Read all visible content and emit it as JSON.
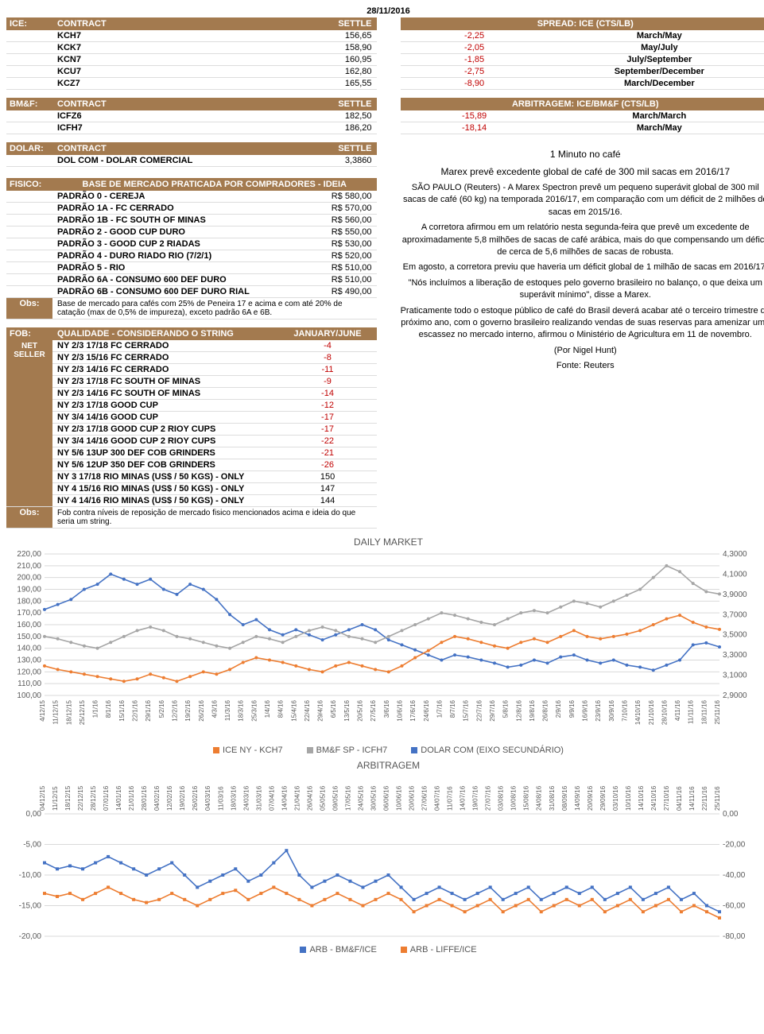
{
  "date": "28/11/2016",
  "ice": {
    "label": "ICE:",
    "headers": [
      "CONTRACT",
      "SETTLE"
    ],
    "rows": [
      [
        "KCH7",
        "156,65"
      ],
      [
        "KCK7",
        "158,90"
      ],
      [
        "KCN7",
        "160,95"
      ],
      [
        "KCU7",
        "162,80"
      ],
      [
        "KCZ7",
        "165,55"
      ]
    ]
  },
  "spread": {
    "title": "SPREAD: ICE (CTS/LB)",
    "rows": [
      [
        "-2,25",
        "March/May"
      ],
      [
        "-2,05",
        "May/July"
      ],
      [
        "-1,85",
        "July/September"
      ],
      [
        "-2,75",
        "September/December"
      ],
      [
        "-8,90",
        "March/December"
      ]
    ]
  },
  "bmf": {
    "label": "BM&F:",
    "headers": [
      "CONTRACT",
      "SETTLE"
    ],
    "rows": [
      [
        "ICFZ6",
        "182,50"
      ],
      [
        "ICFH7",
        "186,20"
      ]
    ]
  },
  "arb": {
    "title": "ARBITRAGEM: ICE/BM&F (CTS/LB)",
    "rows": [
      [
        "-15,89",
        "March/March"
      ],
      [
        "-18,14",
        "March/May"
      ]
    ]
  },
  "dolar": {
    "label": "DOLAR:",
    "headers": [
      "CONTRACT",
      "SETTLE"
    ],
    "rows": [
      [
        "DOL COM - DOLAR COMERCIAL",
        "3,3860"
      ]
    ]
  },
  "fisico": {
    "label": "FISICO:",
    "title": "BASE DE MERCADO PRATICADA POR COMPRADORES - IDEIA",
    "rows": [
      [
        "PADRÃO 0 - CEREJA",
        "R$ 580,00"
      ],
      [
        "PADRÃO 1A - FC CERRADO",
        "R$ 570,00"
      ],
      [
        "PADRÃO 1B - FC SOUTH OF MINAS",
        "R$ 560,00"
      ],
      [
        "PADRÃO 2 - GOOD CUP DURO",
        "R$ 550,00"
      ],
      [
        "PADRÃO 3 - GOOD CUP 2 RIADAS",
        "R$ 530,00"
      ],
      [
        "PADRÃO 4 - DURO RIADO RIO (7/2/1)",
        "R$ 520,00"
      ],
      [
        "PADRÃO 5 - RIO",
        "R$ 510,00"
      ],
      [
        "PADRÃO 6A - CONSUMO 600 DEF DURO",
        "R$ 510,00"
      ],
      [
        "PADRÃO 6B - CONSUMO 600 DEF DURO RIAL",
        "R$ 490,00"
      ]
    ],
    "obs_label": "Obs:",
    "obs": "Base de mercado para cafés com 25% de Peneira 17 e acima e com até 20% de catação (max de 0,5% de impureza), exceto padrão 6A e 6B."
  },
  "fob": {
    "label": "FOB:",
    "sub_label": "NET SELLER",
    "title": "QUALIDADE - CONSIDERANDO O STRING",
    "col2": "JANUARY/JUNE",
    "rows": [
      [
        "NY 2/3 17/18 FC CERRADO",
        "-4",
        true
      ],
      [
        "NY 2/3 15/16 FC CERRADO",
        "-8",
        true
      ],
      [
        "NY 2/3 14/16 FC CERRADO",
        "-11",
        true
      ],
      [
        "NY 2/3 17/18 FC SOUTH OF MINAS",
        "-9",
        true
      ],
      [
        "NY 2/3 14/16 FC SOUTH OF MINAS",
        "-14",
        true
      ],
      [
        "NY 2/3 17/18 GOOD CUP",
        "-12",
        true
      ],
      [
        "NY 3/4 14/16 GOOD CUP",
        "-17",
        true
      ],
      [
        "NY 2/3 17/18 GOOD CUP 2 RIOY CUPS",
        "-17",
        true
      ],
      [
        "NY 3/4 14/16 GOOD CUP 2 RIOY CUPS",
        "-22",
        true
      ],
      [
        "NY 5/6 13UP 300 DEF COB GRINDERS",
        "-21",
        true
      ],
      [
        "NY 5/6 12UP 350 DEF COB GRINDERS",
        "-26",
        true
      ],
      [
        "NY 3 17/18 RIO MINAS (US$ / 50 KGS) - ONLY",
        "150",
        false
      ],
      [
        "NY 4 15/16 RIO MINAS (US$ / 50 KGS) - ONLY",
        "147",
        false
      ],
      [
        "NY 4 14/16 RIO MINAS (US$ / 50 KGS) - ONLY",
        "144",
        false
      ]
    ],
    "obs_label": "Obs:",
    "obs": "Fob contra níveis de reposição de mercado fisico mencionados acima e ideia do que seria um string."
  },
  "news": {
    "subtitle": "1 Minuto no café",
    "headline": "Marex prevê excedente global de café de 300 mil sacas em 2016/17",
    "paragraphs": [
      "SÃO PAULO (Reuters) - A Marex Spectron prevê um pequeno superávit global de 300 mil sacas de café (60 kg) na temporada 2016/17, em comparação com um déficit de 2 milhões de sacas em 2015/16.",
      "A corretora afirmou em um relatório nesta segunda-feira que prevê um excedente de aproximadamente 5,8 milhões de sacas de café arábica, mais do que compensando um déficit de cerca de 5,6 milhões de sacas de robusta.",
      "Em agosto, a corretora previu que haveria um déficit global de 1 milhão de sacas em 2016/17.",
      "\"Nós incluímos a liberação de estoques pelo governo brasileiro no balanço, o que deixa um superávit mínimo\", disse a Marex.",
      "Praticamente todo o estoque público de café do Brasil deverá acabar até o terceiro trimestre do próximo ano, com o governo brasileiro realizando vendas de suas reservas para amenizar uma escassez no mercado interno, afirmou o Ministério de Agricultura em 11 de novembro.",
      "(Por Nigel Hunt)",
      "Fonte: Reuters"
    ]
  },
  "chart1": {
    "title": "DAILY MARKET",
    "left_min": 100,
    "left_max": 220,
    "left_step": 10,
    "right_min": 2.9,
    "right_max": 4.3,
    "right_step": 0.2,
    "colors": {
      "ice": "#ed7d31",
      "bmf": "#a6a6a6",
      "dolar": "#4472c4",
      "grid": "#d9d9d9",
      "text": "#595959"
    },
    "xlabels": [
      "4/12/15",
      "11/12/15",
      "18/12/15",
      "25/12/15",
      "1/1/16",
      "8/1/16",
      "15/1/16",
      "22/1/16",
      "29/1/16",
      "5/2/16",
      "12/2/16",
      "19/2/16",
      "26/2/16",
      "4/3/16",
      "11/3/16",
      "18/3/16",
      "25/3/16",
      "1/4/16",
      "8/4/16",
      "15/4/16",
      "22/4/16",
      "29/4/16",
      "6/5/16",
      "13/5/16",
      "20/5/16",
      "27/5/16",
      "3/6/16",
      "10/6/16",
      "17/6/16",
      "24/6/16",
      "1/7/16",
      "8/7/16",
      "15/7/16",
      "22/7/16",
      "29/7/16",
      "5/8/16",
      "12/8/16",
      "19/8/16",
      "26/8/16",
      "2/9/16",
      "9/9/16",
      "16/9/16",
      "23/9/16",
      "30/9/16",
      "7/10/16",
      "14/10/16",
      "21/10/16",
      "28/10/16",
      "4/11/16",
      "11/11/16",
      "18/11/16",
      "25/11/16"
    ],
    "series": {
      "ice": [
        125,
        122,
        120,
        118,
        116,
        114,
        112,
        114,
        118,
        115,
        112,
        116,
        120,
        118,
        122,
        128,
        132,
        130,
        128,
        125,
        122,
        120,
        125,
        128,
        125,
        122,
        120,
        125,
        132,
        138,
        145,
        150,
        148,
        145,
        142,
        140,
        145,
        148,
        145,
        150,
        155,
        150,
        148,
        150,
        152,
        155,
        160,
        165,
        168,
        162,
        158,
        156
      ],
      "bmf": [
        150,
        148,
        145,
        142,
        140,
        145,
        150,
        155,
        158,
        155,
        150,
        148,
        145,
        142,
        140,
        145,
        150,
        148,
        145,
        150,
        155,
        158,
        155,
        150,
        148,
        145,
        150,
        155,
        160,
        165,
        170,
        168,
        165,
        162,
        160,
        165,
        170,
        172,
        170,
        175,
        180,
        178,
        175,
        180,
        185,
        190,
        200,
        210,
        205,
        195,
        188,
        186
      ],
      "dolar": [
        3.75,
        3.8,
        3.85,
        3.95,
        4.0,
        4.1,
        4.05,
        4.0,
        4.05,
        3.95,
        3.9,
        4.0,
        3.95,
        3.85,
        3.7,
        3.6,
        3.65,
        3.55,
        3.5,
        3.55,
        3.5,
        3.45,
        3.5,
        3.55,
        3.6,
        3.55,
        3.45,
        3.4,
        3.35,
        3.3,
        3.25,
        3.3,
        3.28,
        3.25,
        3.22,
        3.18,
        3.2,
        3.25,
        3.22,
        3.28,
        3.3,
        3.25,
        3.22,
        3.25,
        3.2,
        3.18,
        3.15,
        3.2,
        3.25,
        3.4,
        3.42,
        3.38
      ]
    },
    "legend": [
      "ICE NY - KCH7",
      "BM&F SP - ICFH7",
      "DOLAR COM (EIXO SECUNDÁRIO)"
    ]
  },
  "chart2": {
    "title": "ARBITRAGEM",
    "left_min": -20,
    "left_max": 0,
    "left_step": 5,
    "right_min": -80,
    "right_max": 0,
    "right_step": 20,
    "colors": {
      "s1": "#4472c4",
      "s2": "#ed7d31",
      "grid": "#d9d9d9",
      "text": "#595959"
    },
    "xlabels": [
      "04/12/15",
      "11/12/15",
      "18/12/15",
      "22/12/15",
      "28/12/15",
      "07/01/16",
      "14/01/16",
      "21/01/16",
      "28/01/16",
      "04/02/16",
      "12/02/16",
      "19/02/16",
      "26/02/16",
      "04/03/16",
      "11/03/16",
      "18/03/16",
      "24/03/16",
      "31/03/16",
      "07/04/16",
      "14/04/16",
      "21/04/16",
      "26/04/16",
      "05/05/16",
      "09/05/16",
      "17/05/16",
      "24/05/16",
      "30/05/16",
      "06/06/16",
      "10/06/16",
      "20/06/16",
      "27/06/16",
      "04/07/16",
      "11/07/16",
      "14/07/16",
      "19/07/16",
      "27/07/16",
      "03/08/16",
      "10/08/16",
      "15/08/16",
      "24/08/16",
      "31/08/16",
      "08/09/16",
      "14/09/16",
      "20/09/16",
      "29/09/16",
      "03/10/16",
      "10/10/16",
      "14/10/16",
      "24/10/16",
      "27/10/16",
      "04/11/16",
      "14/11/16",
      "22/11/16",
      "25/11/16"
    ],
    "series": {
      "s1": [
        -8,
        -9,
        -8.5,
        -9,
        -8,
        -7,
        -8,
        -9,
        -10,
        -9,
        -8,
        -10,
        -12,
        -11,
        -10,
        -9,
        -11,
        -10,
        -8,
        -6,
        -10,
        -12,
        -11,
        -10,
        -11,
        -12,
        -11,
        -10,
        -12,
        -14,
        -13,
        -12,
        -13,
        -14,
        -13,
        -12,
        -14,
        -13,
        -12,
        -14,
        -13,
        -12,
        -13,
        -12,
        -14,
        -13,
        -12,
        -14,
        -13,
        -12,
        -14,
        -13,
        -15,
        -16
      ],
      "s2": [
        -13,
        -13.5,
        -13,
        -14,
        -13,
        -12,
        -13,
        -14,
        -14.5,
        -14,
        -13,
        -14,
        -15,
        -14,
        -13,
        -12.5,
        -14,
        -13,
        -12,
        -13,
        -14,
        -15,
        -14,
        -13,
        -14,
        -15,
        -14,
        -13,
        -14,
        -16,
        -15,
        -14,
        -15,
        -16,
        -15,
        -14,
        -16,
        -15,
        -14,
        -16,
        -15,
        -14,
        -15,
        -14,
        -16,
        -15,
        -14,
        -16,
        -15,
        -14,
        -16,
        -15,
        -16,
        -17
      ]
    },
    "legend": [
      "ARB - BM&F/ICE",
      "ARB - LIFFE/ICE"
    ]
  }
}
